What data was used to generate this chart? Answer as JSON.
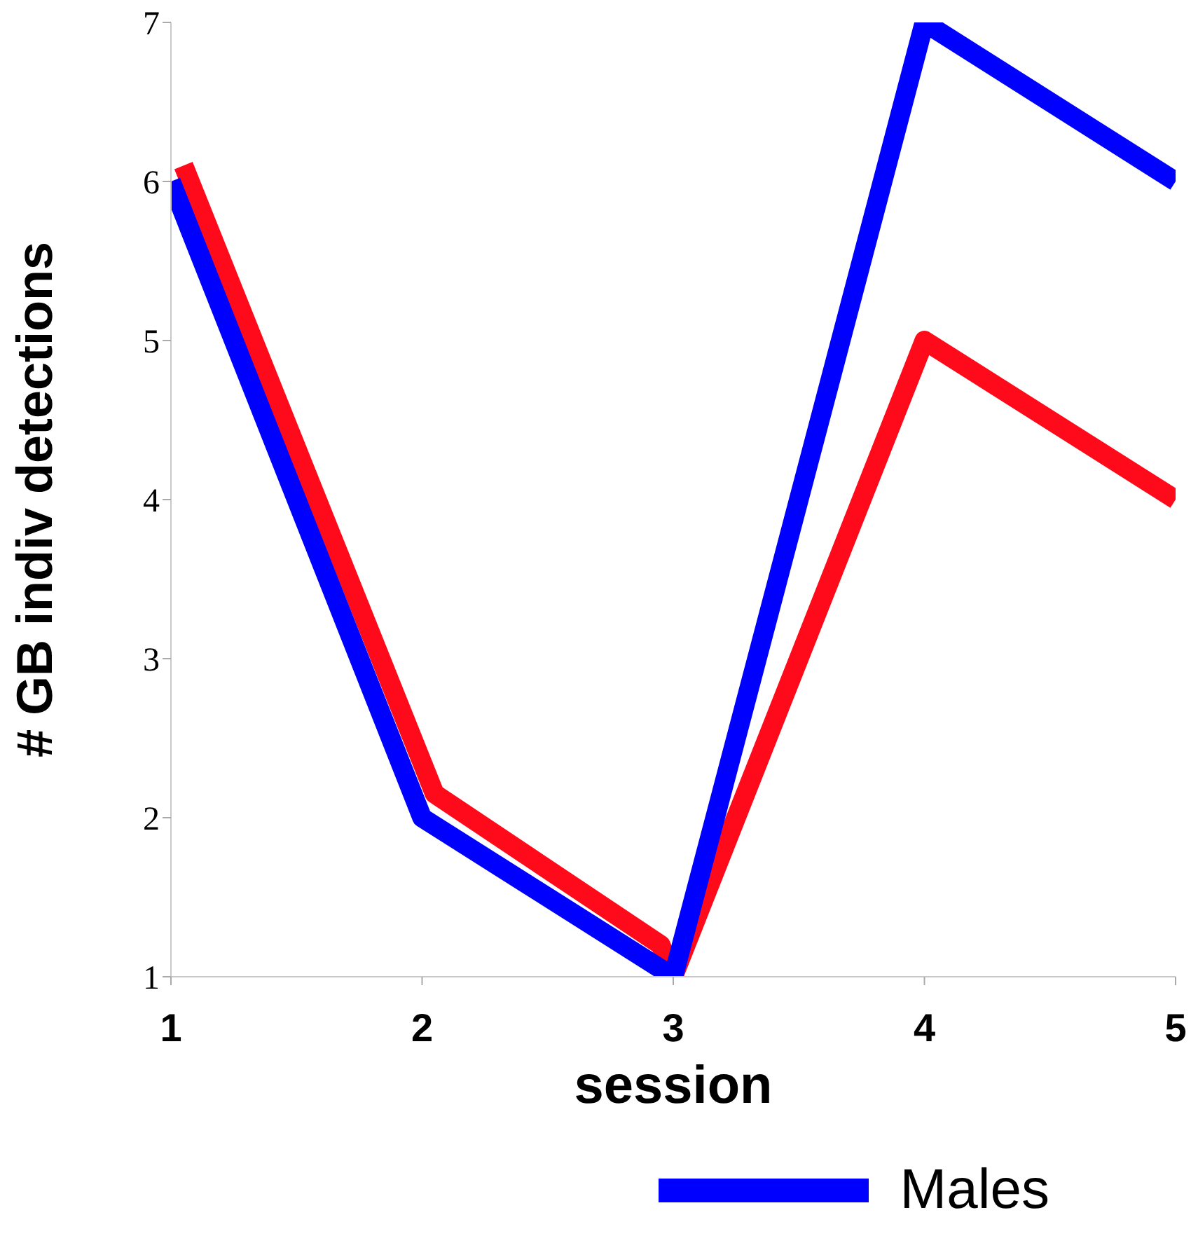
{
  "chart_data": {
    "type": "line",
    "xlabel": "session",
    "ylabel": "# GB indiv detections",
    "xlim": [
      1,
      5
    ],
    "xticks": [
      1,
      2,
      3,
      4,
      5
    ],
    "ylim": [
      1,
      7
    ],
    "yticks": [
      1,
      2,
      3,
      4,
      5,
      6,
      7
    ],
    "series": [
      {
        "color": "#ff0a1a",
        "x": [
          1.05,
          2.05,
          2.95,
          3,
          4,
          5
        ],
        "values": [
          6.1,
          2.15,
          1.2,
          1,
          5,
          4
        ]
      },
      {
        "name": "Males",
        "color": "#0000ff",
        "x": [
          1,
          2,
          3,
          4,
          5
        ],
        "values": [
          6,
          2,
          1,
          7,
          6
        ]
      }
    ],
    "grid": false,
    "legend": "bottom",
    "marker": "none",
    "line_style": "solid"
  }
}
